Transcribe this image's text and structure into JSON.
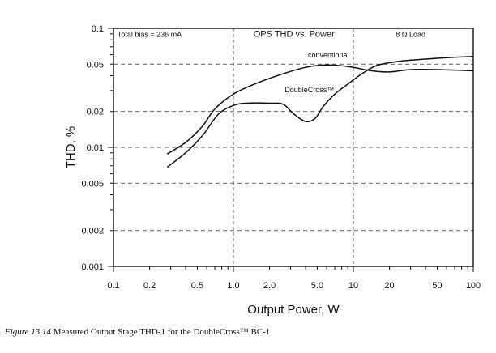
{
  "chart_data": {
    "type": "line",
    "title": "OPS THD vs. Power",
    "xlabel": "Output Power, W",
    "ylabel": "THD, %",
    "x_scale": "log",
    "y_scale": "log",
    "xlim": [
      0.1,
      100
    ],
    "ylim": [
      0.001,
      0.1
    ],
    "x_ticks": [
      {
        "value": 0.1,
        "label": "0.1"
      },
      {
        "value": 0.2,
        "label": "0.2"
      },
      {
        "value": 0.5,
        "label": "0.5"
      },
      {
        "value": 1,
        "label": "1.0"
      },
      {
        "value": 2,
        "label": "2.0"
      },
      {
        "value": 5,
        "label": "5.0"
      },
      {
        "value": 10,
        "label": "10"
      },
      {
        "value": 20,
        "label": "20"
      },
      {
        "value": 50,
        "label": "50"
      },
      {
        "value": 100,
        "label": "100"
      }
    ],
    "y_ticks": [
      {
        "value": 0.001,
        "label": "0.001"
      },
      {
        "value": 0.002,
        "label": "0.002"
      },
      {
        "value": 0.005,
        "label": "0.005"
      },
      {
        "value": 0.01,
        "label": "0.01"
      },
      {
        "value": 0.02,
        "label": "0.02"
      },
      {
        "value": 0.05,
        "label": "0.05"
      },
      {
        "value": 0.1,
        "label": "0.1"
      }
    ],
    "grid": {
      "vertical": [
        1,
        10
      ],
      "horizontal": [
        0.002,
        0.005,
        0.01,
        0.02,
        0.05
      ],
      "style": "dashed"
    },
    "annotations": [
      {
        "text": "Total bias = 236 mA",
        "x": 0.2,
        "y": 0.085
      },
      {
        "text": "OPS THD vs. Power",
        "x": 3.2,
        "y": 0.085
      },
      {
        "text": "8 Ω Load",
        "x": 30,
        "y": 0.085
      }
    ],
    "series": [
      {
        "name": "conventional",
        "label_at": {
          "x": 6.2,
          "y": 0.057
        },
        "points": [
          [
            0.28,
            0.0088
          ],
          [
            0.4,
            0.011
          ],
          [
            0.55,
            0.015
          ],
          [
            0.7,
            0.021
          ],
          [
            1.0,
            0.028
          ],
          [
            1.5,
            0.034
          ],
          [
            2.5,
            0.041
          ],
          [
            4.0,
            0.047
          ],
          [
            5.5,
            0.049
          ],
          [
            7.0,
            0.049
          ],
          [
            10.0,
            0.047
          ],
          [
            14.0,
            0.044
          ],
          [
            20.0,
            0.043
          ],
          [
            30.0,
            0.045
          ],
          [
            50.0,
            0.045
          ],
          [
            100.0,
            0.044
          ]
        ]
      },
      {
        "name": "DoubleCross™",
        "label_at": {
          "x": 4.3,
          "y": 0.029
        },
        "points": [
          [
            0.28,
            0.0068
          ],
          [
            0.4,
            0.009
          ],
          [
            0.55,
            0.0125
          ],
          [
            0.75,
            0.019
          ],
          [
            1.0,
            0.0225
          ],
          [
            1.3,
            0.0235
          ],
          [
            2.0,
            0.0235
          ],
          [
            2.6,
            0.023
          ],
          [
            3.2,
            0.019
          ],
          [
            4.0,
            0.0165
          ],
          [
            4.8,
            0.0175
          ],
          [
            5.6,
            0.022
          ],
          [
            7.0,
            0.028
          ],
          [
            9.0,
            0.034
          ],
          [
            12.0,
            0.042
          ],
          [
            16.0,
            0.049
          ],
          [
            25.0,
            0.053
          ],
          [
            50.0,
            0.056
          ],
          [
            100.0,
            0.058
          ]
        ]
      }
    ]
  },
  "caption": {
    "figure_label": "Figure 13.14",
    "text": "Measured Output Stage THD-1 for the DoubleCross™ BC-1"
  }
}
